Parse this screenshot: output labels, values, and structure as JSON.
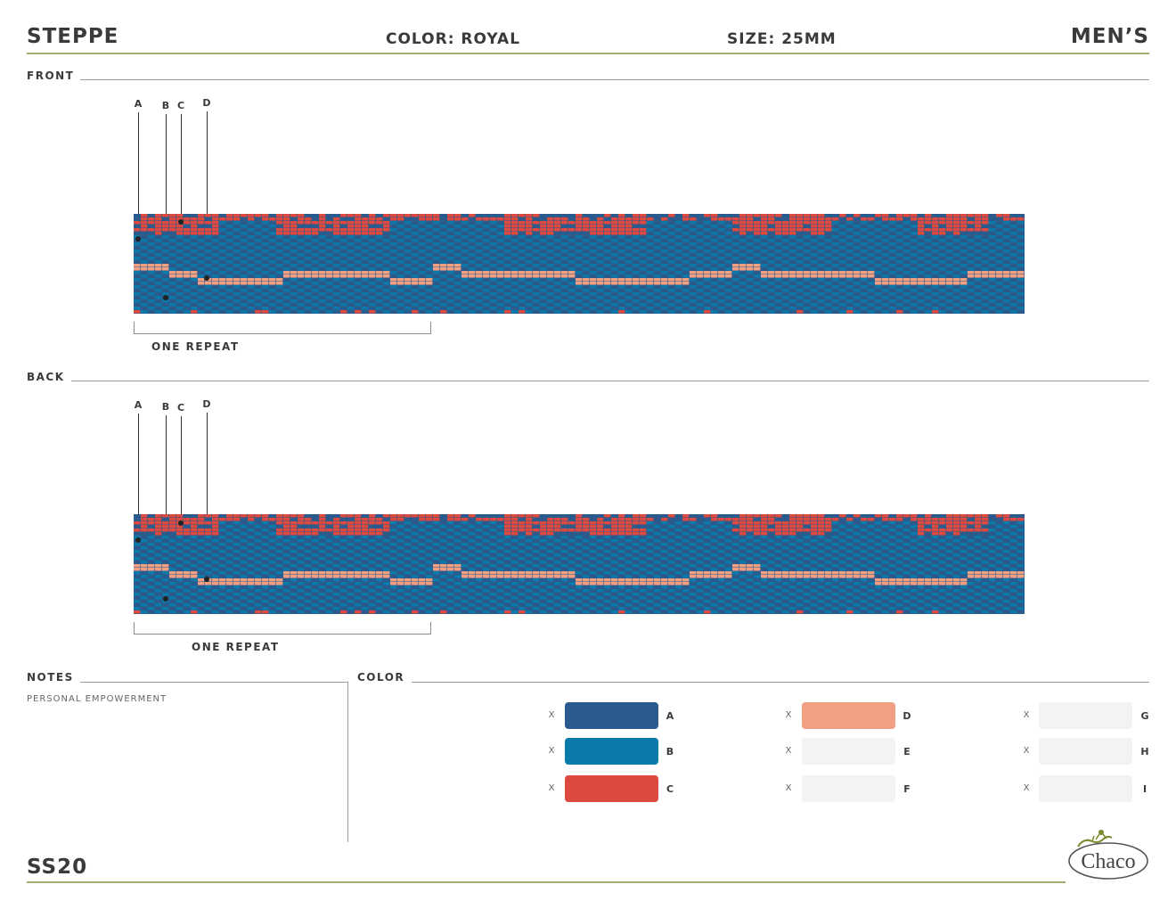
{
  "header": {
    "style": "STEPPE",
    "color": "COLOR: ROYAL",
    "size": "SIZE: 25MM",
    "gender": "MEN’S"
  },
  "front": {
    "label": "FRONT",
    "markers": [
      "A",
      "B",
      "C",
      "D"
    ],
    "repeat_label": "ONE REPEAT"
  },
  "back": {
    "label": "BACK",
    "markers": [
      "A",
      "B",
      "C",
      "D"
    ],
    "repeat_label": "ONE REPEAT"
  },
  "notes": {
    "label": "NOTES",
    "text": "PERSONAL EMPOWERMENT"
  },
  "color_section": {
    "label": "COLOR",
    "swatches": [
      {
        "letter": "A",
        "mark": "X",
        "hex": "#2b5a8c"
      },
      {
        "letter": "B",
        "mark": "X",
        "hex": "#0a7aaa"
      },
      {
        "letter": "C",
        "mark": "X",
        "hex": "#dc4a40"
      },
      {
        "letter": "D",
        "mark": "X",
        "hex": "#f2a083"
      },
      {
        "letter": "E",
        "mark": "X",
        "hex": "#f2f3f3"
      },
      {
        "letter": "F",
        "mark": "X",
        "hex": "#f2f3f3"
      },
      {
        "letter": "G",
        "mark": "X",
        "hex": "#f2f3f3"
      },
      {
        "letter": "H",
        "mark": "X",
        "hex": "#f2f3f3"
      },
      {
        "letter": "I",
        "mark": "X",
        "hex": "#f2f3f3"
      }
    ]
  },
  "footer": {
    "season": "SS20",
    "logo_text": "Chaco"
  },
  "colors": {
    "rule_olive": "#a5ab70",
    "strap_navy": "#2b5a8c",
    "strap_blue": "#0a7aaa",
    "strap_red": "#dc4a40",
    "strap_peach": "#f2a083"
  }
}
